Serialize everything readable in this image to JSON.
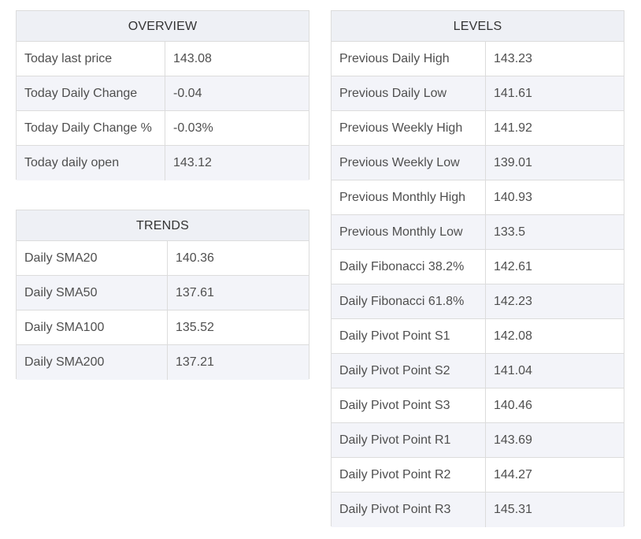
{
  "overview": {
    "title": "OVERVIEW",
    "rows": [
      {
        "label": "Today last price",
        "value": "143.08"
      },
      {
        "label": "Today Daily Change",
        "value": "-0.04"
      },
      {
        "label": "Today Daily Change %",
        "value": "-0.03%"
      },
      {
        "label": "Today daily open",
        "value": "143.12"
      }
    ]
  },
  "trends": {
    "title": "TRENDS",
    "rows": [
      {
        "label": "Daily SMA20",
        "value": "140.36"
      },
      {
        "label": "Daily SMA50",
        "value": "137.61"
      },
      {
        "label": "Daily SMA100",
        "value": "135.52"
      },
      {
        "label": "Daily SMA200",
        "value": "137.21"
      }
    ]
  },
  "levels": {
    "title": "LEVELS",
    "rows": [
      {
        "label": "Previous Daily High",
        "value": "143.23"
      },
      {
        "label": "Previous Daily Low",
        "value": "141.61"
      },
      {
        "label": "Previous Weekly High",
        "value": "141.92"
      },
      {
        "label": "Previous Weekly Low",
        "value": "139.01"
      },
      {
        "label": "Previous Monthly High",
        "value": "140.93"
      },
      {
        "label": "Previous Monthly Low",
        "value": "133.5"
      },
      {
        "label": "Daily Fibonacci 38.2%",
        "value": "142.61"
      },
      {
        "label": "Daily Fibonacci 61.8%",
        "value": "142.23"
      },
      {
        "label": "Daily Pivot Point S1",
        "value": "142.08"
      },
      {
        "label": "Daily Pivot Point S2",
        "value": "141.04"
      },
      {
        "label": "Daily Pivot Point S3",
        "value": "140.46"
      },
      {
        "label": "Daily Pivot Point R1",
        "value": "143.69"
      },
      {
        "label": "Daily Pivot Point R2",
        "value": "144.27"
      },
      {
        "label": "Daily Pivot Point R3",
        "value": "145.31"
      }
    ]
  },
  "colors": {
    "header_bg": "#eef0f5",
    "row_alt_bg": "#f3f4f9",
    "border": "#dcdcdc",
    "text": "#4f4f4f"
  }
}
